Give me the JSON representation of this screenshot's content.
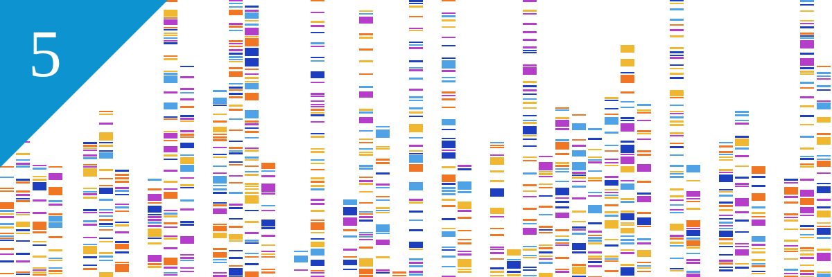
{
  "badge": {
    "label": "5"
  }
}
